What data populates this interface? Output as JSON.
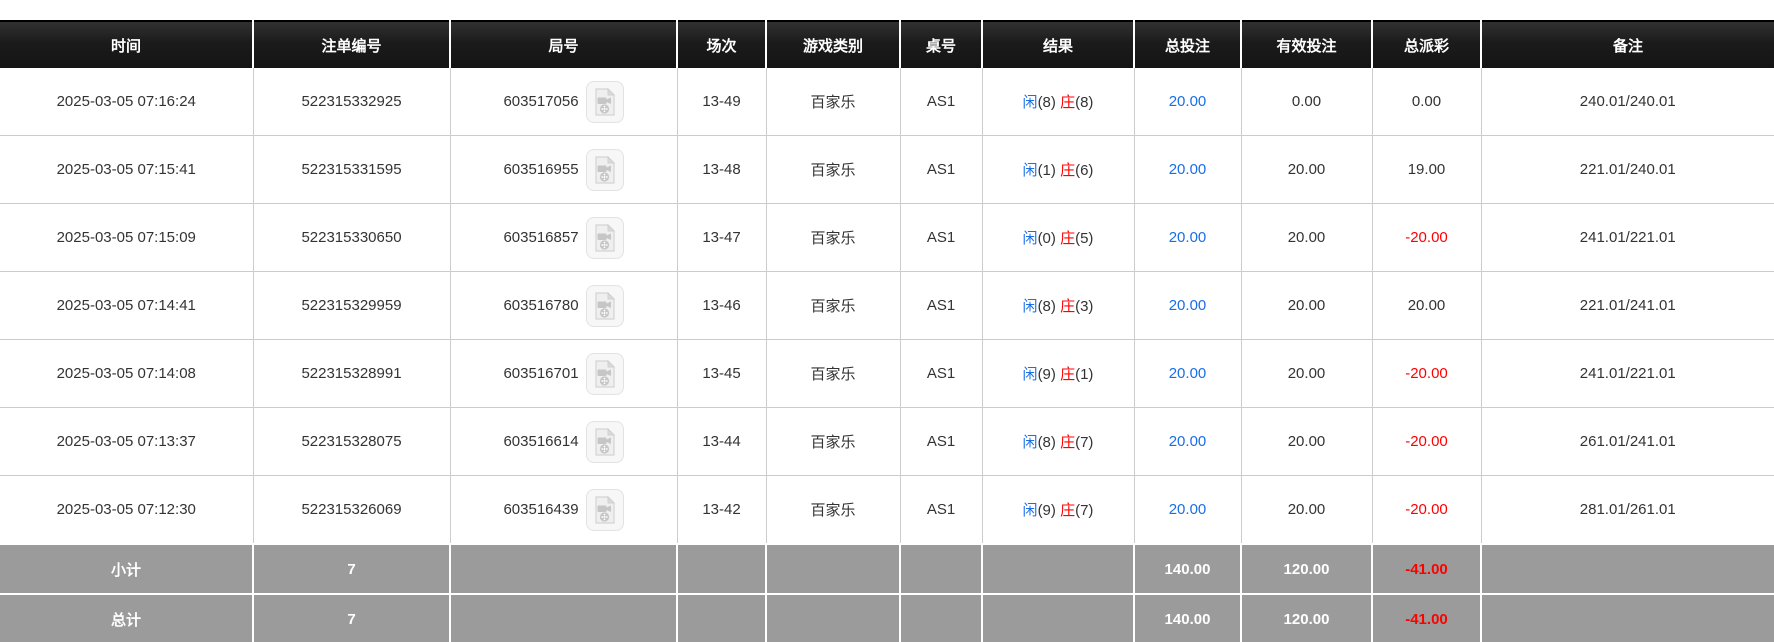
{
  "colors": {
    "header_bg": "#1b1b1b",
    "footer_bg": "#9b9b9b",
    "accent_blue": "#1a6ee8",
    "negative_red": "#ff0000",
    "row_border": "#cccccc"
  },
  "table": {
    "columns": [
      "时间",
      "注单编号",
      "局号",
      "场次",
      "游戏类别",
      "桌号",
      "结果",
      "总投注",
      "有效投注",
      "总派彩",
      "备注"
    ],
    "video_icon": "video-file-icon",
    "rows": [
      {
        "time": "2025-03-05 07:16:24",
        "bet_id": "522315332925",
        "round_id": "603517056",
        "session": "13-49",
        "game_type": "百家乐",
        "table_no": "AS1",
        "result": {
          "player_label": "闲",
          "player_score": "(8)",
          "banker_label": "庄",
          "banker_score": "(8)"
        },
        "total_bet": "20.00",
        "valid_bet": "0.00",
        "payout": "0.00",
        "remark": "240.01/240.01"
      },
      {
        "time": "2025-03-05 07:15:41",
        "bet_id": "522315331595",
        "round_id": "603516955",
        "session": "13-48",
        "game_type": "百家乐",
        "table_no": "AS1",
        "result": {
          "player_label": "闲",
          "player_score": "(1)",
          "banker_label": "庄",
          "banker_score": "(6)"
        },
        "total_bet": "20.00",
        "valid_bet": "20.00",
        "payout": "19.00",
        "remark": "221.01/240.01"
      },
      {
        "time": "2025-03-05 07:15:09",
        "bet_id": "522315330650",
        "round_id": "603516857",
        "session": "13-47",
        "game_type": "百家乐",
        "table_no": "AS1",
        "result": {
          "player_label": "闲",
          "player_score": "(0)",
          "banker_label": "庄",
          "banker_score": "(5)"
        },
        "total_bet": "20.00",
        "valid_bet": "20.00",
        "payout": "-20.00",
        "remark": "241.01/221.01"
      },
      {
        "time": "2025-03-05 07:14:41",
        "bet_id": "522315329959",
        "round_id": "603516780",
        "session": "13-46",
        "game_type": "百家乐",
        "table_no": "AS1",
        "result": {
          "player_label": "闲",
          "player_score": "(8)",
          "banker_label": "庄",
          "banker_score": "(3)"
        },
        "total_bet": "20.00",
        "valid_bet": "20.00",
        "payout": "20.00",
        "remark": "221.01/241.01"
      },
      {
        "time": "2025-03-05 07:14:08",
        "bet_id": "522315328991",
        "round_id": "603516701",
        "session": "13-45",
        "game_type": "百家乐",
        "table_no": "AS1",
        "result": {
          "player_label": "闲",
          "player_score": "(9)",
          "banker_label": "庄",
          "banker_score": "(1)"
        },
        "total_bet": "20.00",
        "valid_bet": "20.00",
        "payout": "-20.00",
        "remark": "241.01/221.01"
      },
      {
        "time": "2025-03-05 07:13:37",
        "bet_id": "522315328075",
        "round_id": "603516614",
        "session": "13-44",
        "game_type": "百家乐",
        "table_no": "AS1",
        "result": {
          "player_label": "闲",
          "player_score": "(8)",
          "banker_label": "庄",
          "banker_score": "(7)"
        },
        "total_bet": "20.00",
        "valid_bet": "20.00",
        "payout": "-20.00",
        "remark": "261.01/241.01"
      },
      {
        "time": "2025-03-05 07:12:30",
        "bet_id": "522315326069",
        "round_id": "603516439",
        "session": "13-42",
        "game_type": "百家乐",
        "table_no": "AS1",
        "result": {
          "player_label": "闲",
          "player_score": "(9)",
          "banker_label": "庄",
          "banker_score": "(7)"
        },
        "total_bet": "20.00",
        "valid_bet": "20.00",
        "payout": "-20.00",
        "remark": "281.01/261.01"
      }
    ],
    "footer_rows": [
      {
        "label": "小计",
        "count": "7",
        "total_bet": "140.00",
        "valid_bet": "120.00",
        "payout": "-41.00",
        "remark": ""
      },
      {
        "label": "总计",
        "count": "7",
        "total_bet": "140.00",
        "valid_bet": "120.00",
        "payout": "-41.00",
        "remark": ""
      }
    ]
  }
}
